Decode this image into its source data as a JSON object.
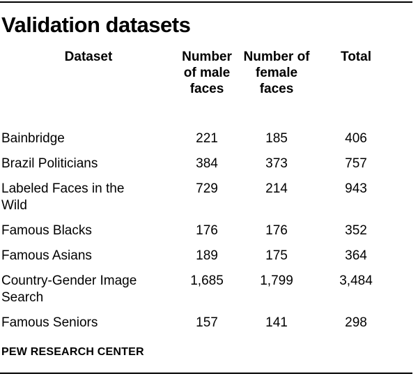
{
  "page": {
    "title": "Validation datasets",
    "source": "PEW RESEARCH CENTER",
    "colors": {
      "text": "#000000",
      "rule": "#000000",
      "background": "#ffffff"
    }
  },
  "table": {
    "header": {
      "dataset": "Dataset",
      "male_lines": [
        "Number",
        "of male",
        "faces"
      ],
      "female_lines": [
        "Number of",
        "female",
        "faces"
      ],
      "total": "Total"
    },
    "rows": [
      {
        "dataset": "Bainbridge",
        "male": "221",
        "female": "185",
        "total": "406"
      },
      {
        "dataset": "Brazil Politicians",
        "male": "384",
        "female": "373",
        "total": "757"
      },
      {
        "dataset": "Labeled Faces in the Wild",
        "male": "729",
        "female": "214",
        "total": "943"
      },
      {
        "dataset": "Famous Blacks",
        "male": "176",
        "female": "176",
        "total": "352"
      },
      {
        "dataset": "Famous Asians",
        "male": "189",
        "female": "175",
        "total": "364"
      },
      {
        "dataset": "Country-Gender Image Search",
        "male": "1,685",
        "female": "1,799",
        "total": "3,484"
      },
      {
        "dataset": "Famous Seniors",
        "male": "157",
        "female": "141",
        "total": "298"
      }
    ]
  },
  "chart_data": {
    "type": "table",
    "title": "Validation datasets",
    "columns": [
      "Dataset",
      "Number of male faces",
      "Number of female faces",
      "Total"
    ],
    "rows": [
      [
        "Bainbridge",
        221,
        185,
        406
      ],
      [
        "Brazil Politicians",
        384,
        373,
        757
      ],
      [
        "Labeled Faces in the Wild",
        729,
        214,
        943
      ],
      [
        "Famous Blacks",
        176,
        176,
        352
      ],
      [
        "Famous Asians",
        189,
        175,
        364
      ],
      [
        "Country-Gender Image Search",
        1685,
        1799,
        3484
      ],
      [
        "Famous Seniors",
        157,
        141,
        298
      ]
    ],
    "source": "PEW RESEARCH CENTER",
    "layout": {
      "grid": false,
      "header_align": "center",
      "dataset_align": "left"
    }
  }
}
